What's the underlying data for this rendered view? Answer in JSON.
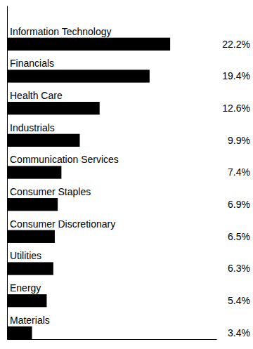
{
  "chart_data": {
    "type": "bar",
    "orientation": "horizontal",
    "categories": [
      "Information Technology",
      "Financials",
      "Health Care",
      "Industrials",
      "Communication Services",
      "Consumer Staples",
      "Consumer Discretionary",
      "Utilities",
      "Energy",
      "Materials"
    ],
    "values": [
      22.2,
      19.4,
      12.6,
      9.9,
      7.4,
      6.9,
      6.5,
      6.3,
      5.4,
      3.4
    ],
    "value_labels": [
      "22.2%",
      "19.4%",
      "12.6%",
      "9.9%",
      "7.4%",
      "6.9%",
      "6.5%",
      "6.3%",
      "5.4%",
      "3.4%"
    ],
    "color": "#000000",
    "xlim": [
      0,
      28.5
    ],
    "xticks": [],
    "grid": false,
    "data_labels": true,
    "tick_labels": false
  }
}
